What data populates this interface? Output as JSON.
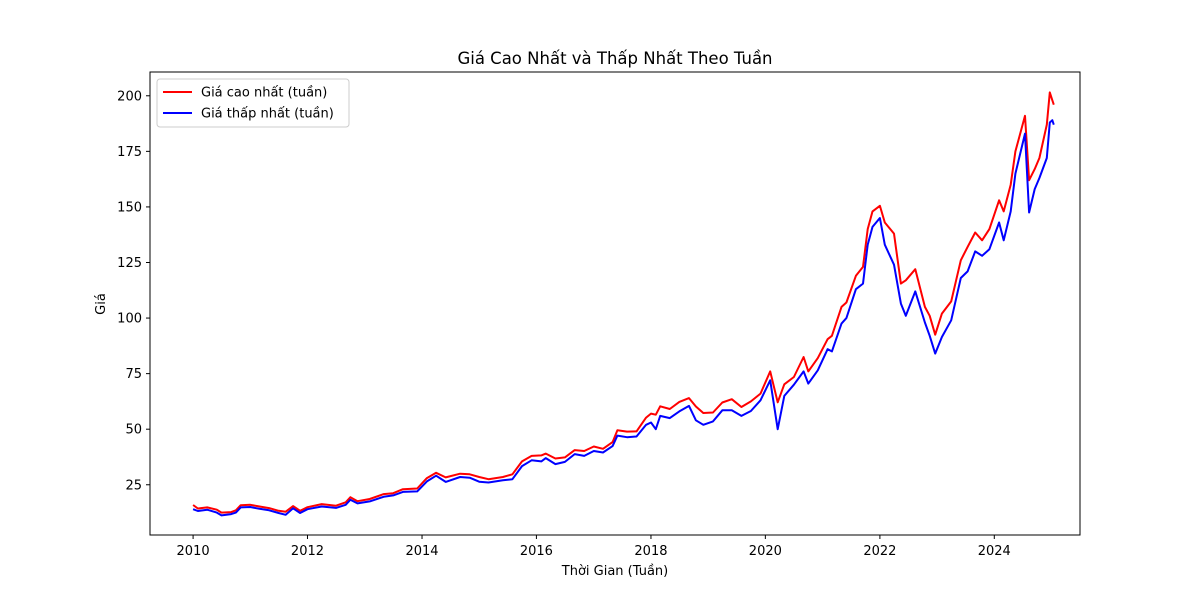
{
  "chart_data": {
    "type": "line",
    "title": "Giá Cao Nhất và Thấp Nhất Theo Tuần",
    "xlabel": "Thời Gian (Tuần)",
    "ylabel": "Giá",
    "xlim": [
      "2009-04-01",
      "2025-07-01"
    ],
    "ylim": [
      2.4,
      210.7
    ],
    "x_ticks": [
      "2010",
      "2012",
      "2014",
      "2016",
      "2018",
      "2020",
      "2022",
      "2024"
    ],
    "y_ticks": [
      25,
      50,
      75,
      100,
      125,
      150,
      175,
      200
    ],
    "grid": false,
    "legend_position": "top-left",
    "series": [
      {
        "name": "Giá cao nhất (tuần)",
        "color": "#ff0000",
        "points": [
          [
            "2010-01-01",
            15.9
          ],
          [
            "2010-02-01",
            14.3
          ],
          [
            "2010-04-01",
            14.8
          ],
          [
            "2010-06-01",
            13.8
          ],
          [
            "2010-07-01",
            12.5
          ],
          [
            "2010-09-01",
            12.7
          ],
          [
            "2010-10-01",
            13.5
          ],
          [
            "2010-11-01",
            15.8
          ],
          [
            "2011-01-01",
            16.0
          ],
          [
            "2011-03-01",
            15.2
          ],
          [
            "2011-05-01",
            14.5
          ],
          [
            "2011-07-01",
            13.3
          ],
          [
            "2011-08-15",
            12.9
          ],
          [
            "2011-10-01",
            15.4
          ],
          [
            "2011-11-15",
            13.3
          ],
          [
            "2012-01-01",
            14.9
          ],
          [
            "2012-04-01",
            16.3
          ],
          [
            "2012-07-01",
            15.6
          ],
          [
            "2012-09-01",
            17.1
          ],
          [
            "2012-10-01",
            19.4
          ],
          [
            "2012-11-15",
            17.6
          ],
          [
            "2013-02-01",
            18.6
          ],
          [
            "2013-05-01",
            20.8
          ],
          [
            "2013-07-01",
            21.2
          ],
          [
            "2013-09-01",
            23.0
          ],
          [
            "2013-12-01",
            23.3
          ],
          [
            "2014-02-01",
            28.0
          ],
          [
            "2014-04-01",
            30.4
          ],
          [
            "2014-06-01",
            28.3
          ],
          [
            "2014-09-01",
            30.0
          ],
          [
            "2014-11-01",
            29.7
          ],
          [
            "2015-01-01",
            28.5
          ],
          [
            "2015-03-01",
            27.5
          ],
          [
            "2015-06-01",
            28.5
          ],
          [
            "2015-08-01",
            29.7
          ],
          [
            "2015-10-01",
            35.5
          ],
          [
            "2015-12-01",
            38.0
          ],
          [
            "2016-02-01",
            38.2
          ],
          [
            "2016-03-01",
            39.0
          ],
          [
            "2016-05-01",
            36.8
          ],
          [
            "2016-07-01",
            37.3
          ],
          [
            "2016-09-01",
            40.6
          ],
          [
            "2016-11-01",
            40.2
          ],
          [
            "2017-01-01",
            42.2
          ],
          [
            "2017-03-01",
            41.2
          ],
          [
            "2017-05-01",
            44.2
          ],
          [
            "2017-06-01",
            49.5
          ],
          [
            "2017-08-01",
            48.9
          ],
          [
            "2017-10-01",
            49.0
          ],
          [
            "2017-12-01",
            55.2
          ],
          [
            "2018-01-01",
            57.0
          ],
          [
            "2018-02-01",
            56.5
          ],
          [
            "2018-03-01",
            60.3
          ],
          [
            "2018-05-01",
            59.1
          ],
          [
            "2018-07-01",
            62.3
          ],
          [
            "2018-09-01",
            64.0
          ],
          [
            "2018-10-15",
            60.2
          ],
          [
            "2018-12-01",
            57.3
          ],
          [
            "2019-02-01",
            57.5
          ],
          [
            "2019-04-01",
            62.0
          ],
          [
            "2019-06-01",
            63.5
          ],
          [
            "2019-08-01",
            60.0
          ],
          [
            "2019-10-01",
            62.5
          ],
          [
            "2019-12-01",
            66.0
          ],
          [
            "2020-02-01",
            76.0
          ],
          [
            "2020-03-20",
            62.1
          ],
          [
            "2020-05-01",
            70.2
          ],
          [
            "2020-07-01",
            73.5
          ],
          [
            "2020-09-01",
            82.5
          ],
          [
            "2020-10-01",
            76.0
          ],
          [
            "2020-12-01",
            82.0
          ],
          [
            "2021-02-01",
            90.5
          ],
          [
            "2021-03-01",
            92.0
          ],
          [
            "2021-05-01",
            105.0
          ],
          [
            "2021-06-01",
            107.0
          ],
          [
            "2021-08-01",
            119.0
          ],
          [
            "2021-09-15",
            123.0
          ],
          [
            "2021-10-15",
            140.0
          ],
          [
            "2021-11-15",
            148.0
          ],
          [
            "2022-01-01",
            150.5
          ],
          [
            "2022-02-01",
            143.0
          ],
          [
            "2022-04-01",
            138.0
          ],
          [
            "2022-05-15",
            115.5
          ],
          [
            "2022-06-15",
            117.0
          ],
          [
            "2022-08-15",
            122.0
          ],
          [
            "2022-10-15",
            105.0
          ],
          [
            "2022-11-15",
            101.0
          ],
          [
            "2022-12-20",
            92.5
          ],
          [
            "2023-02-01",
            102.0
          ],
          [
            "2023-04-01",
            107.5
          ],
          [
            "2023-06-01",
            126.0
          ],
          [
            "2023-07-15",
            132.0
          ],
          [
            "2023-09-01",
            138.5
          ],
          [
            "2023-10-15",
            135.0
          ],
          [
            "2023-12-01",
            140.0
          ],
          [
            "2024-02-01",
            153.0
          ],
          [
            "2024-03-01",
            148.0
          ],
          [
            "2024-04-15",
            160.0
          ],
          [
            "2024-05-15",
            175.0
          ],
          [
            "2024-07-15",
            191.0
          ],
          [
            "2024-08-10",
            162.0
          ],
          [
            "2024-09-15",
            167.0
          ],
          [
            "2024-10-15",
            172.0
          ],
          [
            "2024-12-01",
            187.0
          ],
          [
            "2024-12-20",
            201.5
          ],
          [
            "2025-01-05",
            198.0
          ],
          [
            "2025-01-15",
            196.0
          ]
        ]
      },
      {
        "name": "Giá thấp nhất (tuần)",
        "color": "#0000ff",
        "points": [
          [
            "2010-01-01",
            14.0
          ],
          [
            "2010-02-01",
            13.2
          ],
          [
            "2010-04-01",
            13.8
          ],
          [
            "2010-06-01",
            12.5
          ],
          [
            "2010-07-01",
            11.2
          ],
          [
            "2010-09-01",
            11.8
          ],
          [
            "2010-10-01",
            12.5
          ],
          [
            "2010-11-01",
            14.8
          ],
          [
            "2011-01-01",
            15.0
          ],
          [
            "2011-03-01",
            14.2
          ],
          [
            "2011-05-01",
            13.5
          ],
          [
            "2011-07-01",
            12.3
          ],
          [
            "2011-08-15",
            11.5
          ],
          [
            "2011-10-01",
            14.4
          ],
          [
            "2011-11-15",
            12.3
          ],
          [
            "2012-01-01",
            14.0
          ],
          [
            "2012-04-01",
            15.2
          ],
          [
            "2012-07-01",
            14.6
          ],
          [
            "2012-09-01",
            16.0
          ],
          [
            "2012-10-01",
            18.3
          ],
          [
            "2012-11-15",
            16.6
          ],
          [
            "2013-02-01",
            17.5
          ],
          [
            "2013-05-01",
            19.6
          ],
          [
            "2013-07-01",
            20.2
          ],
          [
            "2013-09-01",
            21.8
          ],
          [
            "2013-12-01",
            22.0
          ],
          [
            "2014-02-01",
            26.5
          ],
          [
            "2014-04-01",
            29.1
          ],
          [
            "2014-06-01",
            26.3
          ],
          [
            "2014-09-01",
            28.5
          ],
          [
            "2014-11-01",
            28.2
          ],
          [
            "2015-01-01",
            26.4
          ],
          [
            "2015-03-01",
            26.0
          ],
          [
            "2015-06-01",
            27.0
          ],
          [
            "2015-08-01",
            27.5
          ],
          [
            "2015-10-01",
            33.4
          ],
          [
            "2015-12-01",
            36.0
          ],
          [
            "2016-02-01",
            35.5
          ],
          [
            "2016-03-01",
            37.0
          ],
          [
            "2016-05-01",
            34.3
          ],
          [
            "2016-07-01",
            35.3
          ],
          [
            "2016-09-01",
            38.8
          ],
          [
            "2016-11-01",
            38.0
          ],
          [
            "2017-01-01",
            40.2
          ],
          [
            "2017-03-01",
            39.5
          ],
          [
            "2017-05-01",
            42.4
          ],
          [
            "2017-06-01",
            47.1
          ],
          [
            "2017-08-01",
            46.4
          ],
          [
            "2017-10-01",
            46.7
          ],
          [
            "2017-12-01",
            52.0
          ],
          [
            "2018-01-01",
            53.0
          ],
          [
            "2018-02-01",
            50.0
          ],
          [
            "2018-03-01",
            56.0
          ],
          [
            "2018-05-01",
            55.0
          ],
          [
            "2018-07-01",
            58.0
          ],
          [
            "2018-09-01",
            60.5
          ],
          [
            "2018-10-15",
            54.0
          ],
          [
            "2018-12-01",
            52.0
          ],
          [
            "2019-02-01",
            53.5
          ],
          [
            "2019-04-01",
            58.5
          ],
          [
            "2019-06-01",
            58.5
          ],
          [
            "2019-08-01",
            56.0
          ],
          [
            "2019-10-01",
            58.2
          ],
          [
            "2019-12-01",
            63.0
          ],
          [
            "2020-02-01",
            72.0
          ],
          [
            "2020-03-20",
            50.0
          ],
          [
            "2020-05-01",
            65.0
          ],
          [
            "2020-07-01",
            70.0
          ],
          [
            "2020-09-01",
            76.0
          ],
          [
            "2020-10-01",
            70.5
          ],
          [
            "2020-12-01",
            76.5
          ],
          [
            "2021-02-01",
            86.0
          ],
          [
            "2021-03-01",
            85.0
          ],
          [
            "2021-05-01",
            97.5
          ],
          [
            "2021-06-01",
            100.0
          ],
          [
            "2021-08-01",
            113.0
          ],
          [
            "2021-09-15",
            115.5
          ],
          [
            "2021-10-15",
            133.0
          ],
          [
            "2021-11-15",
            141.0
          ],
          [
            "2022-01-01",
            145.0
          ],
          [
            "2022-02-01",
            133.0
          ],
          [
            "2022-04-01",
            124.0
          ],
          [
            "2022-05-15",
            106.5
          ],
          [
            "2022-06-15",
            101.0
          ],
          [
            "2022-08-15",
            112.0
          ],
          [
            "2022-10-15",
            98.0
          ],
          [
            "2022-11-15",
            92.0
          ],
          [
            "2022-12-20",
            84.0
          ],
          [
            "2023-02-01",
            91.5
          ],
          [
            "2023-04-01",
            99.0
          ],
          [
            "2023-06-01",
            118.0
          ],
          [
            "2023-07-15",
            121.0
          ],
          [
            "2023-09-01",
            130.0
          ],
          [
            "2023-10-15",
            128.0
          ],
          [
            "2023-12-01",
            131.0
          ],
          [
            "2024-02-01",
            143.0
          ],
          [
            "2024-03-01",
            135.0
          ],
          [
            "2024-04-15",
            148.0
          ],
          [
            "2024-05-15",
            165.0
          ],
          [
            "2024-07-15",
            183.0
          ],
          [
            "2024-08-10",
            147.5
          ],
          [
            "2024-09-15",
            158.0
          ],
          [
            "2024-10-15",
            163.0
          ],
          [
            "2024-12-01",
            172.0
          ],
          [
            "2024-12-20",
            188.0
          ],
          [
            "2025-01-05",
            189.0
          ],
          [
            "2025-01-15",
            187.0
          ]
        ]
      }
    ]
  }
}
